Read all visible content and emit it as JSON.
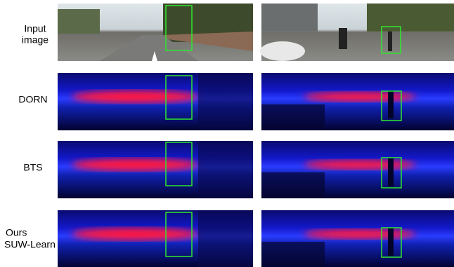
{
  "rows": [
    {
      "label": [
        "Input",
        "image"
      ]
    },
    {
      "label": [
        "DORN"
      ]
    },
    {
      "label": [
        "BTS"
      ]
    },
    {
      "label": [
        "Ours",
        "SUW-Learn"
      ]
    }
  ]
}
